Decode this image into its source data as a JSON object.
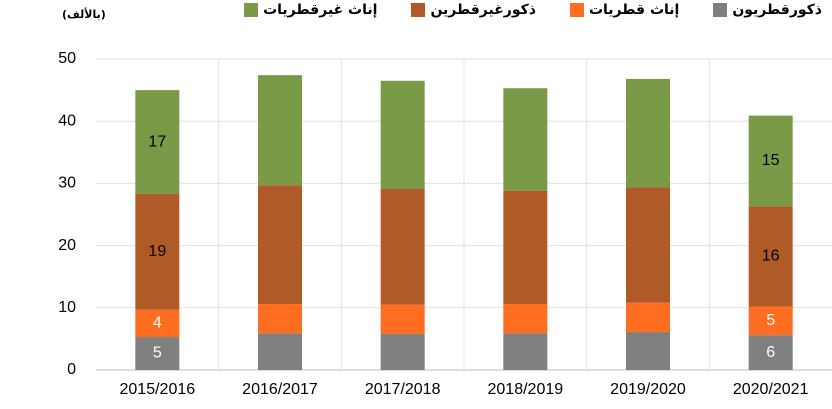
{
  "chart_data": {
    "type": "stacked_bar",
    "unit_label": "(بالألف)",
    "categories": [
      "2015/2016",
      "2016/2017",
      "2017/2018",
      "2018/2019",
      "2019/2020",
      "2020/2021"
    ],
    "series": [
      {
        "name": "ذكورقطريون",
        "color": "#7f7f7f",
        "label_color": "#ffffff",
        "values": [
          5.3,
          5.9,
          5.8,
          5.9,
          6.1,
          5.6
        ],
        "value_labels": [
          "5",
          null,
          null,
          null,
          null,
          "6"
        ]
      },
      {
        "name": "إناث قطريات",
        "color": "#ff6d20",
        "label_color": "#ffffff",
        "values": [
          4.4,
          4.7,
          4.7,
          4.7,
          4.7,
          4.6
        ],
        "value_labels": [
          "4",
          null,
          null,
          null,
          null,
          "5"
        ]
      },
      {
        "name": "ذكورغيرقطرين",
        "color": "#b05a28",
        "label_color": "#000000",
        "values": [
          18.6,
          19.1,
          18.6,
          18.2,
          18.6,
          16.1
        ],
        "value_labels": [
          "19",
          null,
          null,
          null,
          null,
          "16"
        ]
      },
      {
        "name": "إناث غيرقطريات",
        "color": "#7a9a48",
        "label_color": "#000000",
        "values": [
          16.7,
          17.7,
          17.4,
          16.5,
          17.4,
          14.6
        ],
        "value_labels": [
          "17",
          null,
          null,
          null,
          null,
          "15"
        ]
      }
    ],
    "ylim": [
      0,
      50
    ],
    "yticks": [
      0,
      10,
      20,
      30,
      40,
      50
    ],
    "grid": true,
    "legend": "top"
  }
}
